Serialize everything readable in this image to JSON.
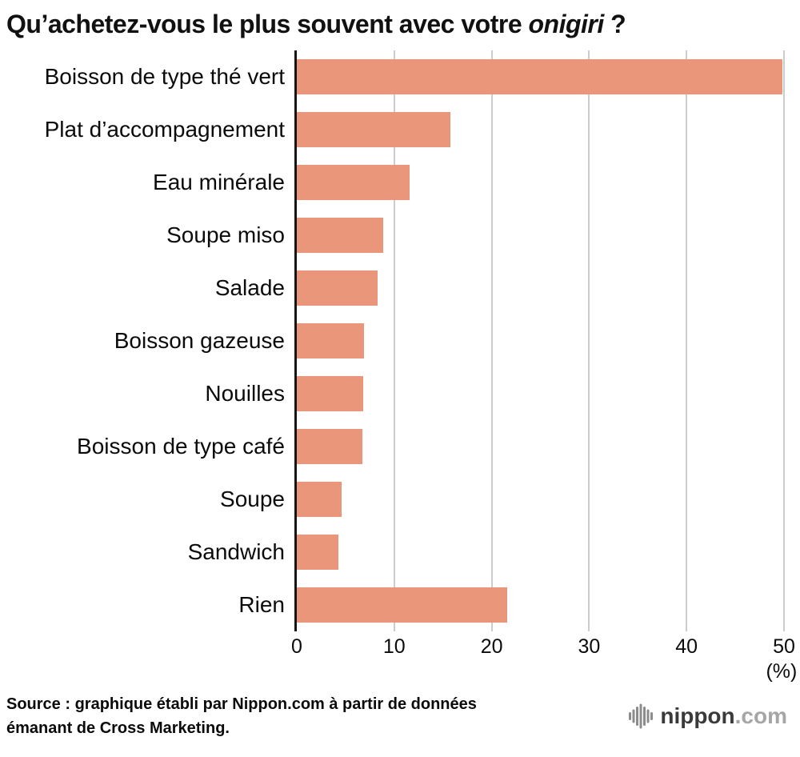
{
  "title": {
    "prefix": "Qu’achetez-vous le plus souvent avec votre ",
    "italic": "onigiri",
    "suffix": " ?"
  },
  "chart_data": {
    "type": "bar",
    "orientation": "horizontal",
    "title": "Qu’achetez-vous le plus souvent avec votre onigiri ?",
    "categories": [
      "Boisson de type thé vert",
      "Plat d’accompagnement",
      "Eau minérale",
      "Soupe miso",
      "Salade",
      "Boisson gazeuse",
      "Nouilles",
      "Boisson de type café",
      "Soupe",
      "Sandwich",
      "Rien"
    ],
    "values": [
      49.8,
      15.8,
      11.6,
      8.9,
      8.3,
      6.9,
      6.8,
      6.7,
      4.6,
      4.3,
      21.6
    ],
    "xlabel": "(%)",
    "ylabel": "",
    "xlim": [
      0,
      50
    ],
    "xticks": [
      0,
      10,
      20,
      30,
      40,
      50
    ],
    "grid": true,
    "legend": false,
    "bar_color": "#E9967A",
    "gridline_color": "#CCCCCC",
    "axis_color": "#151515"
  },
  "footer": {
    "source_line1": "Source : graphique établi par Nippon.com à partir de données",
    "source_line2": "émanant de Cross Marketing.",
    "logo": {
      "name": "nippon",
      "suffix": ".com"
    }
  }
}
